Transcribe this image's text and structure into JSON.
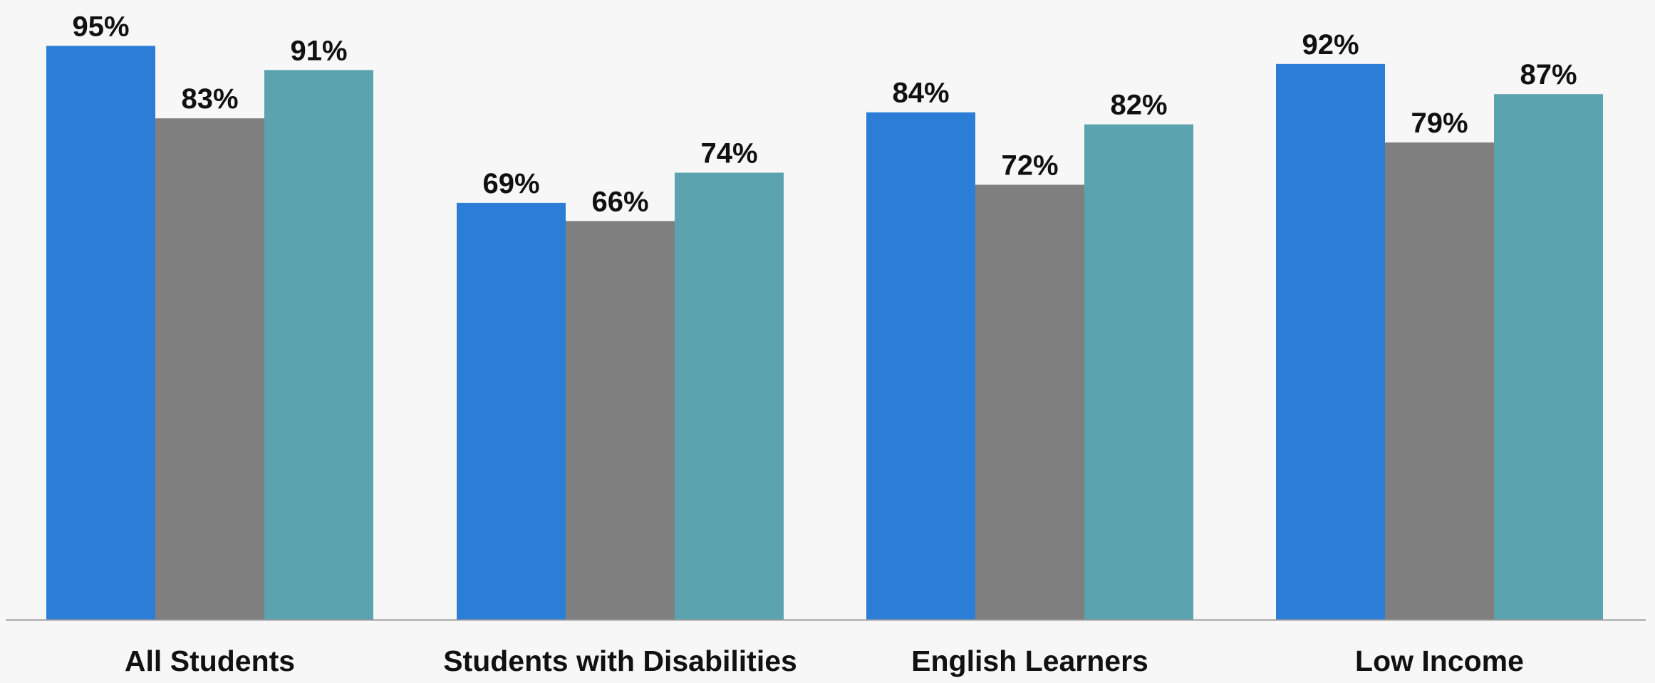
{
  "chart_data": {
    "type": "bar",
    "categories": [
      "All Students",
      "Students with Disabilities",
      "English Learners",
      "Low Income"
    ],
    "series": [
      {
        "values": [
          95,
          69,
          84,
          92
        ],
        "labels": [
          "95%",
          "69%",
          "84%",
          "92%"
        ],
        "color": "#2b7dd6"
      },
      {
        "values": [
          83,
          66,
          72,
          79
        ],
        "labels": [
          "83%",
          "66%",
          "72%",
          "79%"
        ],
        "color": "#7f7f7f"
      },
      {
        "values": [
          91,
          74,
          82,
          87
        ],
        "labels": [
          "91%",
          "74%",
          "82%",
          "87%"
        ],
        "color": "#5ba3ae"
      }
    ],
    "ylim": [
      0,
      100
    ],
    "grid": false,
    "value_unit": "%",
    "title": "",
    "xlabel": "",
    "ylabel": ""
  },
  "colors": {
    "background": "#f7f7f7",
    "axis": "#9a9a9a",
    "text": "#111111"
  }
}
